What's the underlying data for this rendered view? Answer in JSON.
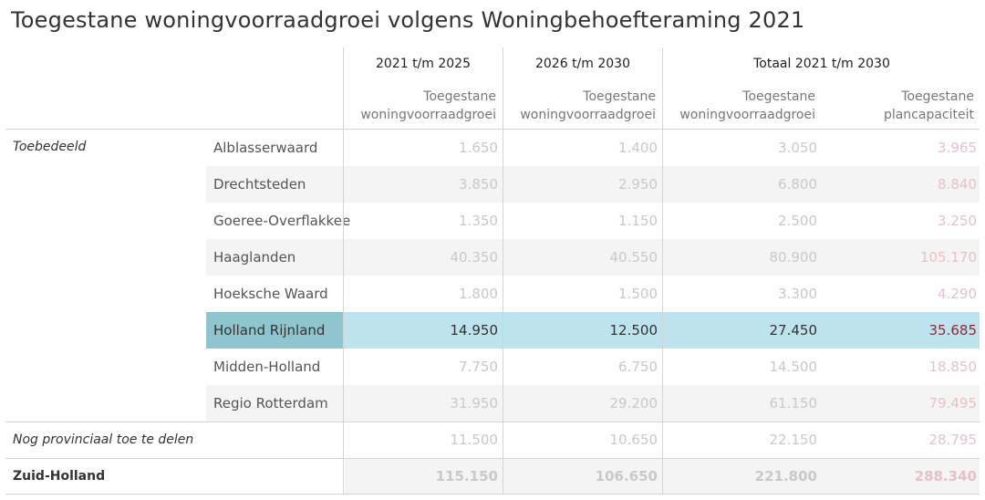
{
  "title": "Toegestane woningvoorraadgroei volgens Woningbehoefteraming 2021",
  "headers": {
    "period_1": "2021 t/m 2025",
    "period_2": "2026 t/m 2030",
    "period_3": "Totaal 2021 t/m 2030",
    "sub_1a": "Toegestane",
    "sub_1b": "woningvoorraadgroei",
    "sub_2a": "Toegestane",
    "sub_2b": "woningvoorraadgroei",
    "sub_3a": "Toegestane",
    "sub_3b": "woningvoorraadgroei",
    "sub_4a": "Toegestane",
    "sub_4b": "plancapaciteit"
  },
  "groups": {
    "toebedeeld": "Toebedeeld",
    "nog": "Nog provinciaal toe te delen",
    "zh": "Zuid-Holland"
  },
  "rows": [
    {
      "name": "Alblasserwaard",
      "c1": "1.650",
      "c2": "1.400",
      "c3": "3.050",
      "c4": "3.965"
    },
    {
      "name": "Drechtsteden",
      "c1": "3.850",
      "c2": "2.950",
      "c3": "6.800",
      "c4": "8.840"
    },
    {
      "name": "Goeree-Overflakkee",
      "c1": "1.350",
      "c2": "1.150",
      "c3": "2.500",
      "c4": "3.250"
    },
    {
      "name": "Haaglanden",
      "c1": "40.350",
      "c2": "40.550",
      "c3": "80.900",
      "c4": "105.170"
    },
    {
      "name": "Hoeksche Waard",
      "c1": "1.800",
      "c2": "1.500",
      "c3": "3.300",
      "c4": "4.290"
    },
    {
      "name": "Holland Rijnland",
      "c1": "14.950",
      "c2": "12.500",
      "c3": "27.450",
      "c4": "35.685"
    },
    {
      "name": "Midden-Holland",
      "c1": "7.750",
      "c2": "6.750",
      "c3": "14.500",
      "c4": "18.850"
    },
    {
      "name": "Regio Rotterdam",
      "c1": "31.950",
      "c2": "29.200",
      "c3": "61.150",
      "c4": "79.495"
    },
    {
      "name": "",
      "c1": "11.500",
      "c2": "10.650",
      "c3": "22.150",
      "c4": "28.795"
    },
    {
      "name": "",
      "c1": "115.150",
      "c2": "106.650",
      "c3": "221.800",
      "c4": "288.340"
    }
  ],
  "colors": {
    "selected_row": "#bde3ef",
    "selected_name": "#8ec5cf",
    "pink_value": "#8b2a3a"
  }
}
